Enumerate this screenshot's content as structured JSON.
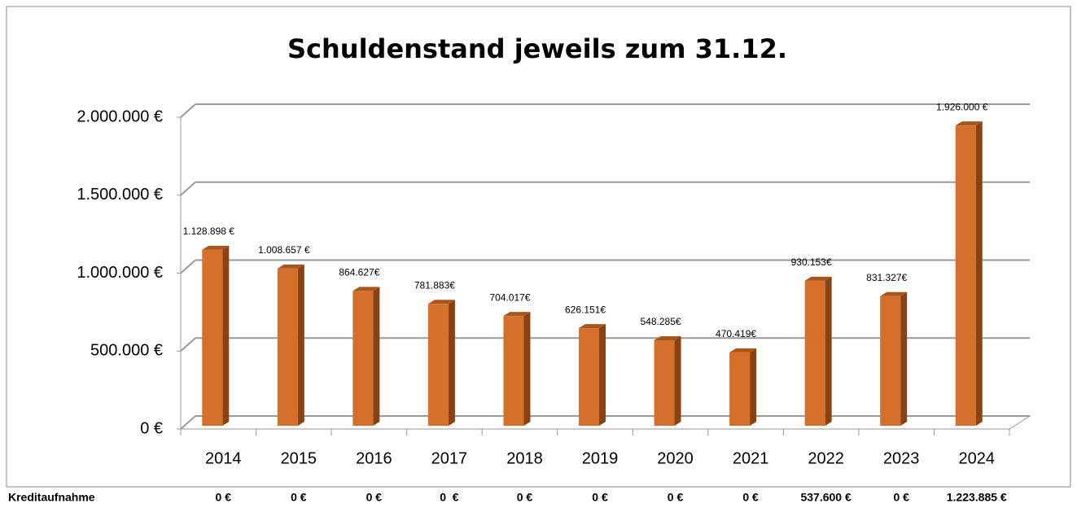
{
  "chart_data": {
    "type": "bar",
    "title": "Schuldenstand jeweils zum 31.12.",
    "categories": [
      "2014",
      "2015",
      "2016",
      "2017",
      "2018",
      "2019",
      "2020",
      "2021",
      "2022",
      "2023",
      "2024"
    ],
    "values": [
      1128898,
      1008657,
      864627,
      781883,
      704017,
      626151,
      548285,
      470419,
      930153,
      831327,
      1926000
    ],
    "value_labels": [
      "1.128.898 €",
      "1.008.657 €",
      "864.627€",
      "781.883€",
      "704.017€",
      "626.151€",
      "548.285€",
      "470.419€",
      "930.153€",
      "831.327€",
      "1.926.000 €"
    ],
    "color": "#d4702c",
    "ylim": [
      0,
      2000000
    ],
    "yticks": [
      {
        "value": 0,
        "label": "0 €"
      },
      {
        "value": 500000,
        "label": "500.000 €"
      },
      {
        "value": 1000000,
        "label": "1.000.000 €"
      },
      {
        "value": 1500000,
        "label": "1.500.000 €"
      },
      {
        "value": 2000000,
        "label": "2.000.000 €"
      }
    ],
    "grid": true
  },
  "credit_row": {
    "label": "Kreditaufnahme",
    "cells": [
      "0 €",
      "0 €",
      "0 €",
      "0  €",
      "0 €",
      "0 €",
      "0 €",
      "0 €",
      "537.600 €",
      "0 €",
      "1.223.885 €"
    ]
  }
}
